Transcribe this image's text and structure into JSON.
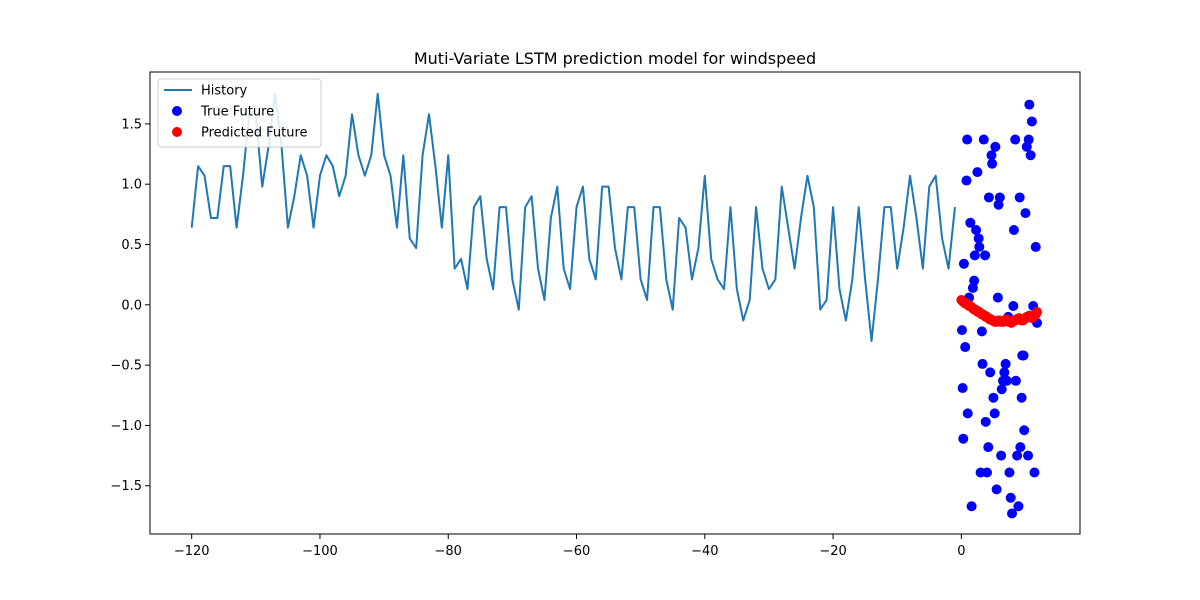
{
  "chart_data": {
    "type": "line",
    "title": "Muti-Variate LSTM prediction model for windspeed",
    "xlabel": "",
    "ylabel": "",
    "xlim": [
      -126.5,
      18.5
    ],
    "ylim": [
      -1.9,
      1.93
    ],
    "xticks": [
      -120,
      -100,
      -80,
      -60,
      -40,
      -20,
      0
    ],
    "xtick_labels": [
      "−120",
      "−100",
      "−80",
      "−60",
      "−40",
      "−20",
      "0"
    ],
    "yticks": [
      -1.5,
      -1.0,
      -0.5,
      0.0,
      0.5,
      1.0,
      1.5
    ],
    "ytick_labels": [
      "−1.5",
      "−1.0",
      "−0.5",
      "0.0",
      "0.5",
      "1.0",
      "1.5"
    ],
    "grid": false,
    "legend_position": "top-left",
    "series": [
      {
        "name": "History",
        "kind": "line",
        "color": "#1f77b4",
        "x_start": -120,
        "x_step": 1,
        "values": [
          0.64,
          1.15,
          1.07,
          0.72,
          0.72,
          1.15,
          1.15,
          0.64,
          1.07,
          1.6,
          1.57,
          0.98,
          1.32,
          1.75,
          1.32,
          0.64,
          0.9,
          1.24,
          1.07,
          0.64,
          1.07,
          1.24,
          1.15,
          0.9,
          1.07,
          1.58,
          1.24,
          1.07,
          1.24,
          1.75,
          1.24,
          1.07,
          0.64,
          1.24,
          0.55,
          0.47,
          1.24,
          1.58,
          1.15,
          0.64,
          1.24,
          0.3,
          0.38,
          0.13,
          0.81,
          0.9,
          0.38,
          0.13,
          0.81,
          0.81,
          0.21,
          -0.04,
          0.81,
          0.9,
          0.3,
          0.04,
          0.72,
          0.98,
          0.3,
          0.13,
          0.81,
          0.98,
          0.38,
          0.21,
          0.98,
          0.98,
          0.47,
          0.21,
          0.81,
          0.81,
          0.21,
          0.04,
          0.81,
          0.81,
          0.21,
          -0.04,
          0.72,
          0.64,
          0.21,
          0.47,
          1.07,
          0.38,
          0.21,
          0.13,
          0.81,
          0.13,
          -0.13,
          0.04,
          0.81,
          0.3,
          0.13,
          0.21,
          0.98,
          0.64,
          0.3,
          0.72,
          1.07,
          0.81,
          -0.04,
          0.04,
          0.81,
          0.13,
          -0.13,
          0.21,
          0.81,
          0.21,
          -0.3,
          0.21,
          0.81,
          0.81,
          0.3,
          0.64,
          1.07,
          0.72,
          0.3,
          0.98,
          1.07,
          0.55,
          0.3,
          0.81
        ]
      },
      {
        "name": "True Future",
        "kind": "scatter",
        "color": "#0000ff",
        "points": [
          [
            0.1,
            -0.21
          ],
          [
            0.2,
            -0.69
          ],
          [
            0.3,
            -1.11
          ],
          [
            0.4,
            0.34
          ],
          [
            0.6,
            -0.35
          ],
          [
            0.8,
            1.03
          ],
          [
            0.9,
            1.37
          ],
          [
            1.0,
            -0.9
          ],
          [
            1.2,
            0.06
          ],
          [
            1.4,
            0.68
          ],
          [
            1.6,
            -1.67
          ],
          [
            1.8,
            0.14
          ],
          [
            2.0,
            0.2
          ],
          [
            2.1,
            0.41
          ],
          [
            2.3,
            0.62
          ],
          [
            2.5,
            1.1
          ],
          [
            2.7,
            0.55
          ],
          [
            2.8,
            0.48
          ],
          [
            3.0,
            -1.39
          ],
          [
            3.2,
            -0.22
          ],
          [
            3.3,
            -0.49
          ],
          [
            3.5,
            1.37
          ],
          [
            3.7,
            0.41
          ],
          [
            3.8,
            -0.97
          ],
          [
            4.0,
            -1.39
          ],
          [
            4.2,
            -1.18
          ],
          [
            4.3,
            0.89
          ],
          [
            4.5,
            -0.56
          ],
          [
            4.7,
            1.24
          ],
          [
            4.8,
            1.17
          ],
          [
            5.0,
            -0.77
          ],
          [
            5.2,
            -0.9
          ],
          [
            5.3,
            1.31
          ],
          [
            5.5,
            -1.53
          ],
          [
            5.7,
            0.06
          ],
          [
            5.8,
            0.83
          ],
          [
            6.0,
            0.89
          ],
          [
            6.2,
            -1.25
          ],
          [
            6.3,
            -0.7
          ],
          [
            6.5,
            -0.63
          ],
          [
            6.7,
            -0.56
          ],
          [
            6.9,
            -0.49
          ],
          [
            7.1,
            -0.63
          ],
          [
            7.3,
            -0.1
          ],
          [
            7.5,
            -1.39
          ],
          [
            7.7,
            -1.6
          ],
          [
            7.9,
            -1.73
          ],
          [
            8.1,
            -0.01
          ],
          [
            8.2,
            0.62
          ],
          [
            8.4,
            1.37
          ],
          [
            8.5,
            -0.63
          ],
          [
            8.7,
            -1.25
          ],
          [
            8.9,
            -1.67
          ],
          [
            9.1,
            0.89
          ],
          [
            9.2,
            -1.18
          ],
          [
            9.4,
            -0.77
          ],
          [
            9.5,
            -0.42
          ],
          [
            9.7,
            -0.42
          ],
          [
            9.8,
            -1.04
          ],
          [
            10.0,
            0.76
          ],
          [
            10.2,
            1.31
          ],
          [
            10.4,
            -1.25
          ],
          [
            10.5,
            1.37
          ],
          [
            10.6,
            1.66
          ],
          [
            10.8,
            1.24
          ],
          [
            11.0,
            1.52
          ],
          [
            11.2,
            -0.01
          ],
          [
            11.4,
            -1.39
          ],
          [
            11.6,
            0.48
          ],
          [
            11.8,
            -0.15
          ]
        ]
      },
      {
        "name": "Predicted Future",
        "kind": "scatter",
        "color": "#ff0000",
        "points": [
          [
            0.0,
            0.04
          ],
          [
            0.2,
            0.03
          ],
          [
            0.4,
            0.02
          ],
          [
            0.6,
            0.01
          ],
          [
            0.8,
            0.01
          ],
          [
            1.0,
            0.0
          ],
          [
            1.2,
            -0.01
          ],
          [
            1.4,
            -0.01
          ],
          [
            1.6,
            -0.02
          ],
          [
            1.8,
            -0.03
          ],
          [
            2.0,
            -0.04
          ],
          [
            2.2,
            -0.04
          ],
          [
            2.4,
            -0.05
          ],
          [
            2.6,
            -0.06
          ],
          [
            2.8,
            -0.06
          ],
          [
            3.0,
            -0.07
          ],
          [
            3.2,
            -0.08
          ],
          [
            3.4,
            -0.08
          ],
          [
            3.6,
            -0.09
          ],
          [
            3.8,
            -0.1
          ],
          [
            4.0,
            -0.1
          ],
          [
            4.2,
            -0.11
          ],
          [
            4.4,
            -0.12
          ],
          [
            4.6,
            -0.12
          ],
          [
            4.8,
            -0.13
          ],
          [
            5.0,
            -0.13
          ],
          [
            5.2,
            -0.14
          ],
          [
            5.4,
            -0.14
          ],
          [
            5.6,
            -0.14
          ],
          [
            5.8,
            -0.13
          ],
          [
            6.0,
            -0.13
          ],
          [
            6.2,
            -0.14
          ],
          [
            6.4,
            -0.14
          ],
          [
            6.6,
            -0.14
          ],
          [
            6.8,
            -0.13
          ],
          [
            7.0,
            -0.12
          ],
          [
            7.2,
            -0.13
          ],
          [
            7.4,
            -0.14
          ],
          [
            7.6,
            -0.14
          ],
          [
            7.8,
            -0.15
          ],
          [
            8.0,
            -0.14
          ],
          [
            8.2,
            -0.13
          ],
          [
            8.4,
            -0.13
          ],
          [
            8.6,
            -0.12
          ],
          [
            8.8,
            -0.12
          ],
          [
            9.0,
            -0.11
          ],
          [
            9.2,
            -0.12
          ],
          [
            9.4,
            -0.13
          ],
          [
            9.6,
            -0.13
          ],
          [
            9.8,
            -0.12
          ],
          [
            10.0,
            -0.11
          ],
          [
            10.2,
            -0.1
          ],
          [
            10.4,
            -0.1
          ],
          [
            10.6,
            -0.09
          ],
          [
            10.8,
            -0.1
          ],
          [
            11.0,
            -0.11
          ],
          [
            11.2,
            -0.1
          ],
          [
            11.4,
            -0.09
          ],
          [
            11.6,
            -0.08
          ],
          [
            11.8,
            -0.06
          ]
        ]
      }
    ]
  }
}
